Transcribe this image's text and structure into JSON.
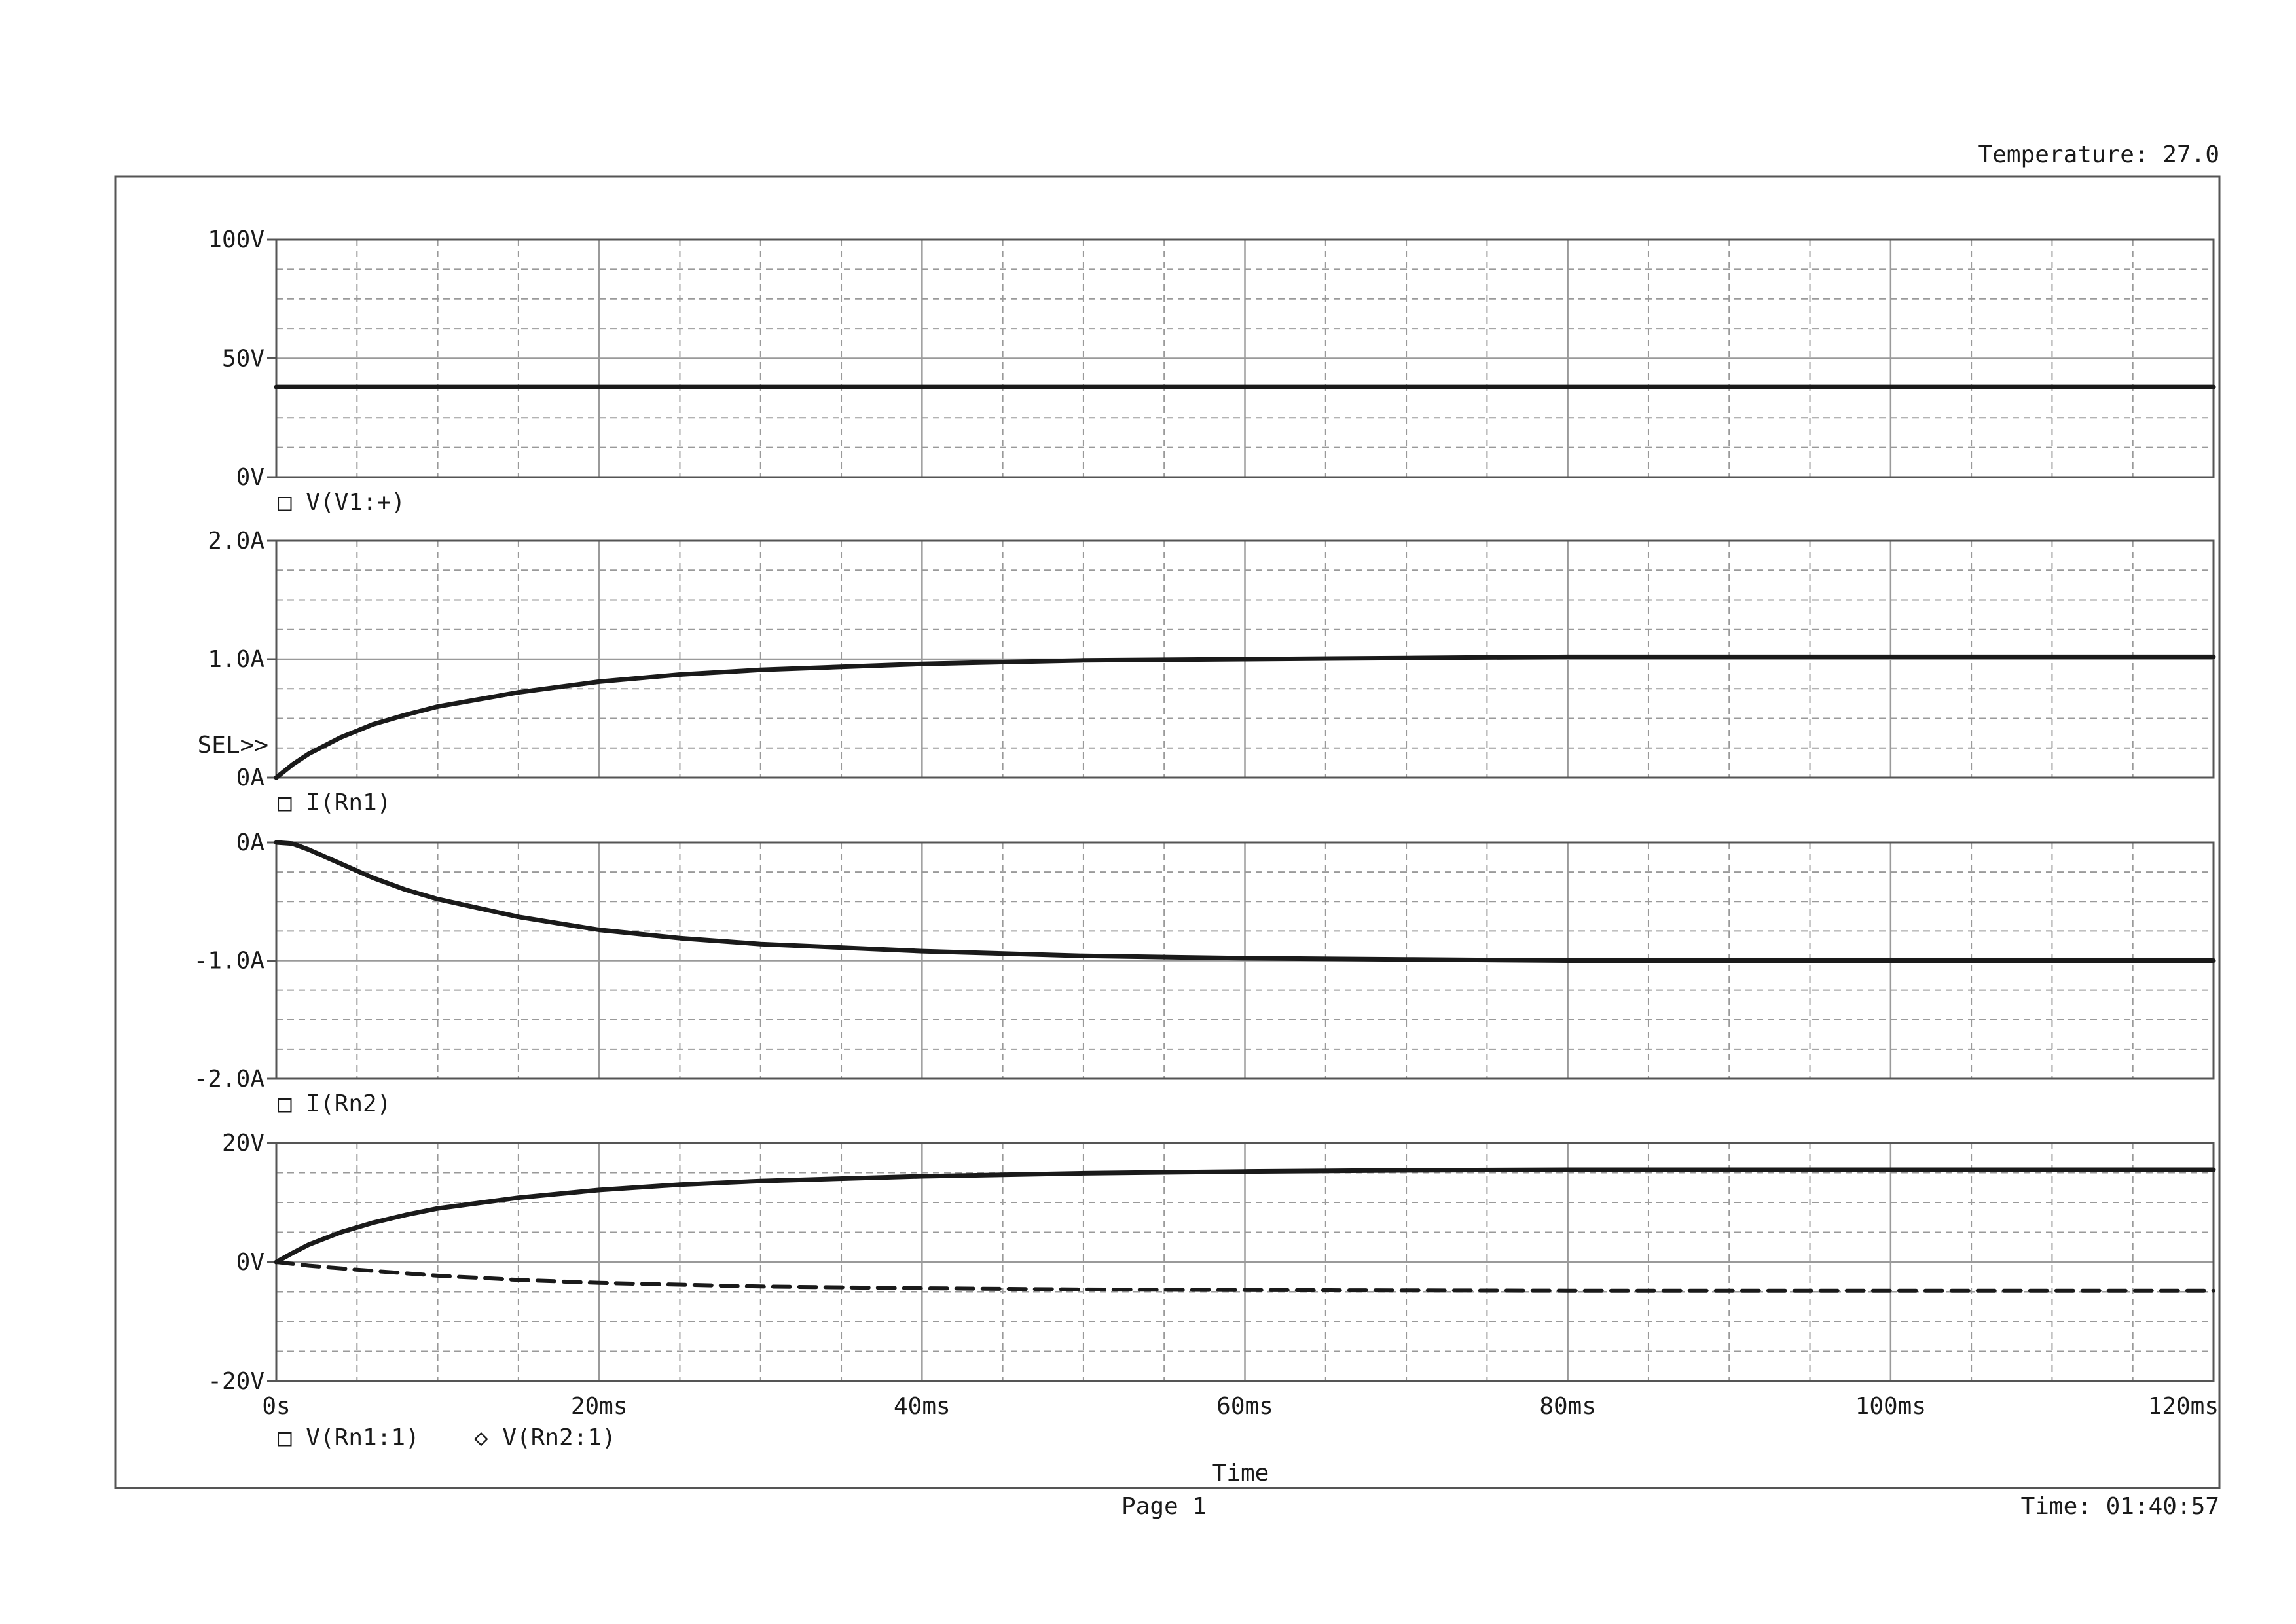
{
  "header": {
    "temperature": "Temperature: 27.0"
  },
  "footer": {
    "page": "Page 1",
    "time": "Time: 01:40:57"
  },
  "sel_marker": "SEL>>",
  "colors": {
    "ink": "#1a1a1a",
    "grid": "#9a9a9a",
    "frame": "#555555"
  },
  "chart_data": [
    {
      "type": "line",
      "ylim": [
        0,
        100
      ],
      "yticks": [
        "100V",
        "50V",
        "0V"
      ],
      "series": [
        {
          "name": "V(V1:+)",
          "marker": "□",
          "style": "solid",
          "x": [
            0,
            20,
            40,
            60,
            80,
            100,
            120
          ],
          "values": [
            38,
            38,
            38,
            38,
            38,
            38,
            38
          ]
        }
      ]
    },
    {
      "type": "line",
      "ylim": [
        0,
        2
      ],
      "yticks": [
        "2.0A",
        "1.0A",
        "0A"
      ],
      "series": [
        {
          "name": "I(Rn1)",
          "marker": "□",
          "style": "solid",
          "x": [
            0,
            1,
            2,
            4,
            6,
            8,
            10,
            15,
            20,
            25,
            30,
            40,
            50,
            60,
            70,
            80,
            100,
            120
          ],
          "values": [
            0,
            0.11,
            0.2,
            0.34,
            0.45,
            0.53,
            0.6,
            0.72,
            0.81,
            0.87,
            0.91,
            0.96,
            0.99,
            1.0,
            1.01,
            1.02,
            1.02,
            1.02
          ]
        }
      ]
    },
    {
      "type": "line",
      "ylim": [
        -2,
        0
      ],
      "yticks": [
        "0A",
        "-1.0A",
        "-2.0A"
      ],
      "series": [
        {
          "name": "I(Rn2)",
          "marker": "□",
          "style": "solid",
          "x": [
            0,
            1,
            2,
            4,
            6,
            8,
            10,
            15,
            20,
            25,
            30,
            40,
            50,
            60,
            70,
            80,
            100,
            120
          ],
          "values": [
            0,
            -0.01,
            -0.06,
            -0.18,
            -0.3,
            -0.4,
            -0.48,
            -0.63,
            -0.74,
            -0.81,
            -0.86,
            -0.92,
            -0.96,
            -0.98,
            -0.99,
            -1.0,
            -1.0,
            -1.0
          ]
        }
      ]
    },
    {
      "type": "line",
      "ylim": [
        -20,
        20
      ],
      "yticks": [
        "20V",
        "0V",
        "-20V"
      ],
      "xlabel": "Time",
      "xticks": [
        "0s",
        "20ms",
        "40ms",
        "60ms",
        "80ms",
        "100ms",
        "120ms"
      ],
      "xlim": [
        0,
        120
      ],
      "series": [
        {
          "name": "V(Rn1:1)",
          "marker": "□",
          "style": "solid",
          "x": [
            0,
            1,
            2,
            4,
            6,
            8,
            10,
            15,
            20,
            25,
            30,
            40,
            50,
            60,
            70,
            80,
            100,
            120
          ],
          "values": [
            0,
            1.5,
            2.9,
            5.0,
            6.6,
            7.9,
            9.0,
            10.8,
            12.1,
            13.0,
            13.6,
            14.4,
            14.9,
            15.2,
            15.4,
            15.5,
            15.5,
            15.5
          ]
        },
        {
          "name": "V(Rn2:1)",
          "marker": "◇",
          "style": "dashed",
          "x": [
            0,
            2,
            5,
            10,
            15,
            20,
            30,
            40,
            50,
            60,
            80,
            100,
            120
          ],
          "values": [
            0,
            -0.6,
            -1.3,
            -2.3,
            -3.0,
            -3.5,
            -4.1,
            -4.4,
            -4.6,
            -4.7,
            -4.8,
            -4.8,
            -4.8
          ]
        }
      ]
    }
  ]
}
